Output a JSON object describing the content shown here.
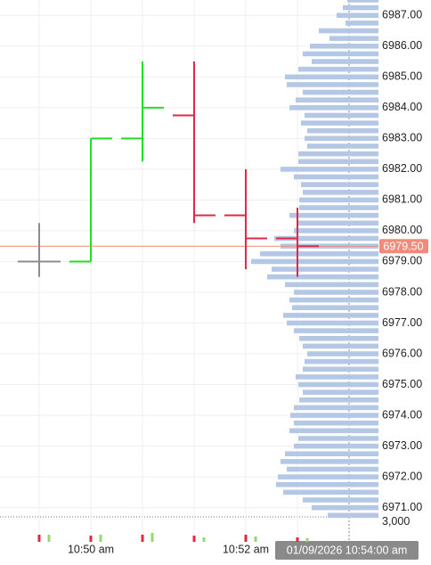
{
  "chart_data": [
    {
      "type": "ohlc",
      "categories": [
        null,
        "10:50 am",
        null,
        null,
        "10:52 am",
        null
      ],
      "open": [
        6979,
        6979,
        6983,
        6983.75,
        6980.5,
        6979.75
      ],
      "high": [
        6980.25,
        6983,
        6985.5,
        6985.5,
        6982,
        6980.75
      ],
      "low": [
        6978.5,
        6979,
        6982.25,
        6980.25,
        6978.75,
        6978.5
      ],
      "close": [
        6979,
        6983,
        6984,
        6980.5,
        6979.75,
        6979.5
      ],
      "colors": {
        "up": "#22dd22",
        "down": "#e0284a",
        "flat": "#8c8c8c"
      },
      "ylim": [
        6970.7,
        6987.5
      ],
      "yticks": [
        {
          "value": 6971,
          "label": "6971.00"
        },
        {
          "value": 6972,
          "label": "6972.00"
        },
        {
          "value": 6973,
          "label": "6973.00"
        },
        {
          "value": 6974,
          "label": "6974.00"
        },
        {
          "value": 6975,
          "label": "6975.00"
        },
        {
          "value": 6976,
          "label": "6976.00"
        },
        {
          "value": 6977,
          "label": "6977.00"
        },
        {
          "value": 6978,
          "label": "6978.00"
        },
        {
          "value": 6979,
          "label": "6979.00"
        },
        {
          "value": 6980,
          "label": "6980.00"
        },
        {
          "value": 6981,
          "label": "6981.00"
        },
        {
          "value": 6982,
          "label": "6982.00"
        },
        {
          "value": 6983,
          "label": "6983.00"
        },
        {
          "value": 6984,
          "label": "6984.00"
        },
        {
          "value": 6985,
          "label": "6985.00"
        },
        {
          "value": 6986,
          "label": "6986.00"
        },
        {
          "value": 6987,
          "label": "6987.00"
        }
      ],
      "grid": true,
      "last_price": {
        "value": 6979.5,
        "label": "6979.50",
        "color": "#f08a7a"
      },
      "profile": {
        "color": "#b4c8e6",
        "prices": [
          6987.5,
          6987.25,
          6987,
          6986.75,
          6986.5,
          6986.25,
          6986,
          6985.75,
          6985.5,
          6985.25,
          6985,
          6984.75,
          6984.5,
          6984.25,
          6984,
          6983.75,
          6983.5,
          6983.25,
          6983,
          6982.75,
          6982.5,
          6982.25,
          6982,
          6981.75,
          6981.5,
          6981.25,
          6981,
          6980.75,
          6980.5,
          6980.25,
          6980,
          6979.75,
          6979.5,
          6979.25,
          6979,
          6978.75,
          6978.5,
          6978.25,
          6978,
          6977.75,
          6977.5,
          6977.25,
          6977,
          6976.75,
          6976.5,
          6976.25,
          6976,
          6975.75,
          6975.5,
          6975.25,
          6975,
          6974.75,
          6974.5,
          6974.25,
          6974,
          6973.75,
          6973.5,
          6973.25,
          6973,
          6972.75,
          6972.5,
          6972.25,
          6972,
          6971.75,
          6971.5,
          6971.25,
          6971,
          6970.75
        ],
        "volumes": [
          35,
          40,
          47,
          37,
          67,
          55,
          77,
          85,
          75,
          90,
          105,
          103,
          85,
          93,
          100,
          83,
          87,
          80,
          83,
          80,
          90,
          90,
          110,
          95,
          87,
          85,
          89,
          89,
          100,
          90,
          95,
          117,
          110,
          133,
          143,
          120,
          125,
          105,
          95,
          100,
          97,
          107,
          103,
          95,
          89,
          85,
          80,
          83,
          85,
          93,
          90,
          85,
          89,
          95,
          99,
          95,
          100,
          90,
          95,
          105,
          110,
          103,
          113,
          115,
          107,
          85,
          75,
          57
        ]
      },
      "crosshair_label": "01/09/2026 10:54:00 am"
    },
    {
      "type": "bar",
      "ylim": [
        0,
        3300
      ],
      "yticks": [
        {
          "value": 3000,
          "label": "3,000"
        }
      ],
      "series": [
        {
          "color": "#e0283c",
          "values": [
            940,
            820,
            940,
            820,
            940,
            590
          ]
        },
        {
          "color": "#8fdc6a",
          "values": [
            940,
            940,
            1180,
            590,
            710,
            470
          ]
        }
      ]
    }
  ]
}
